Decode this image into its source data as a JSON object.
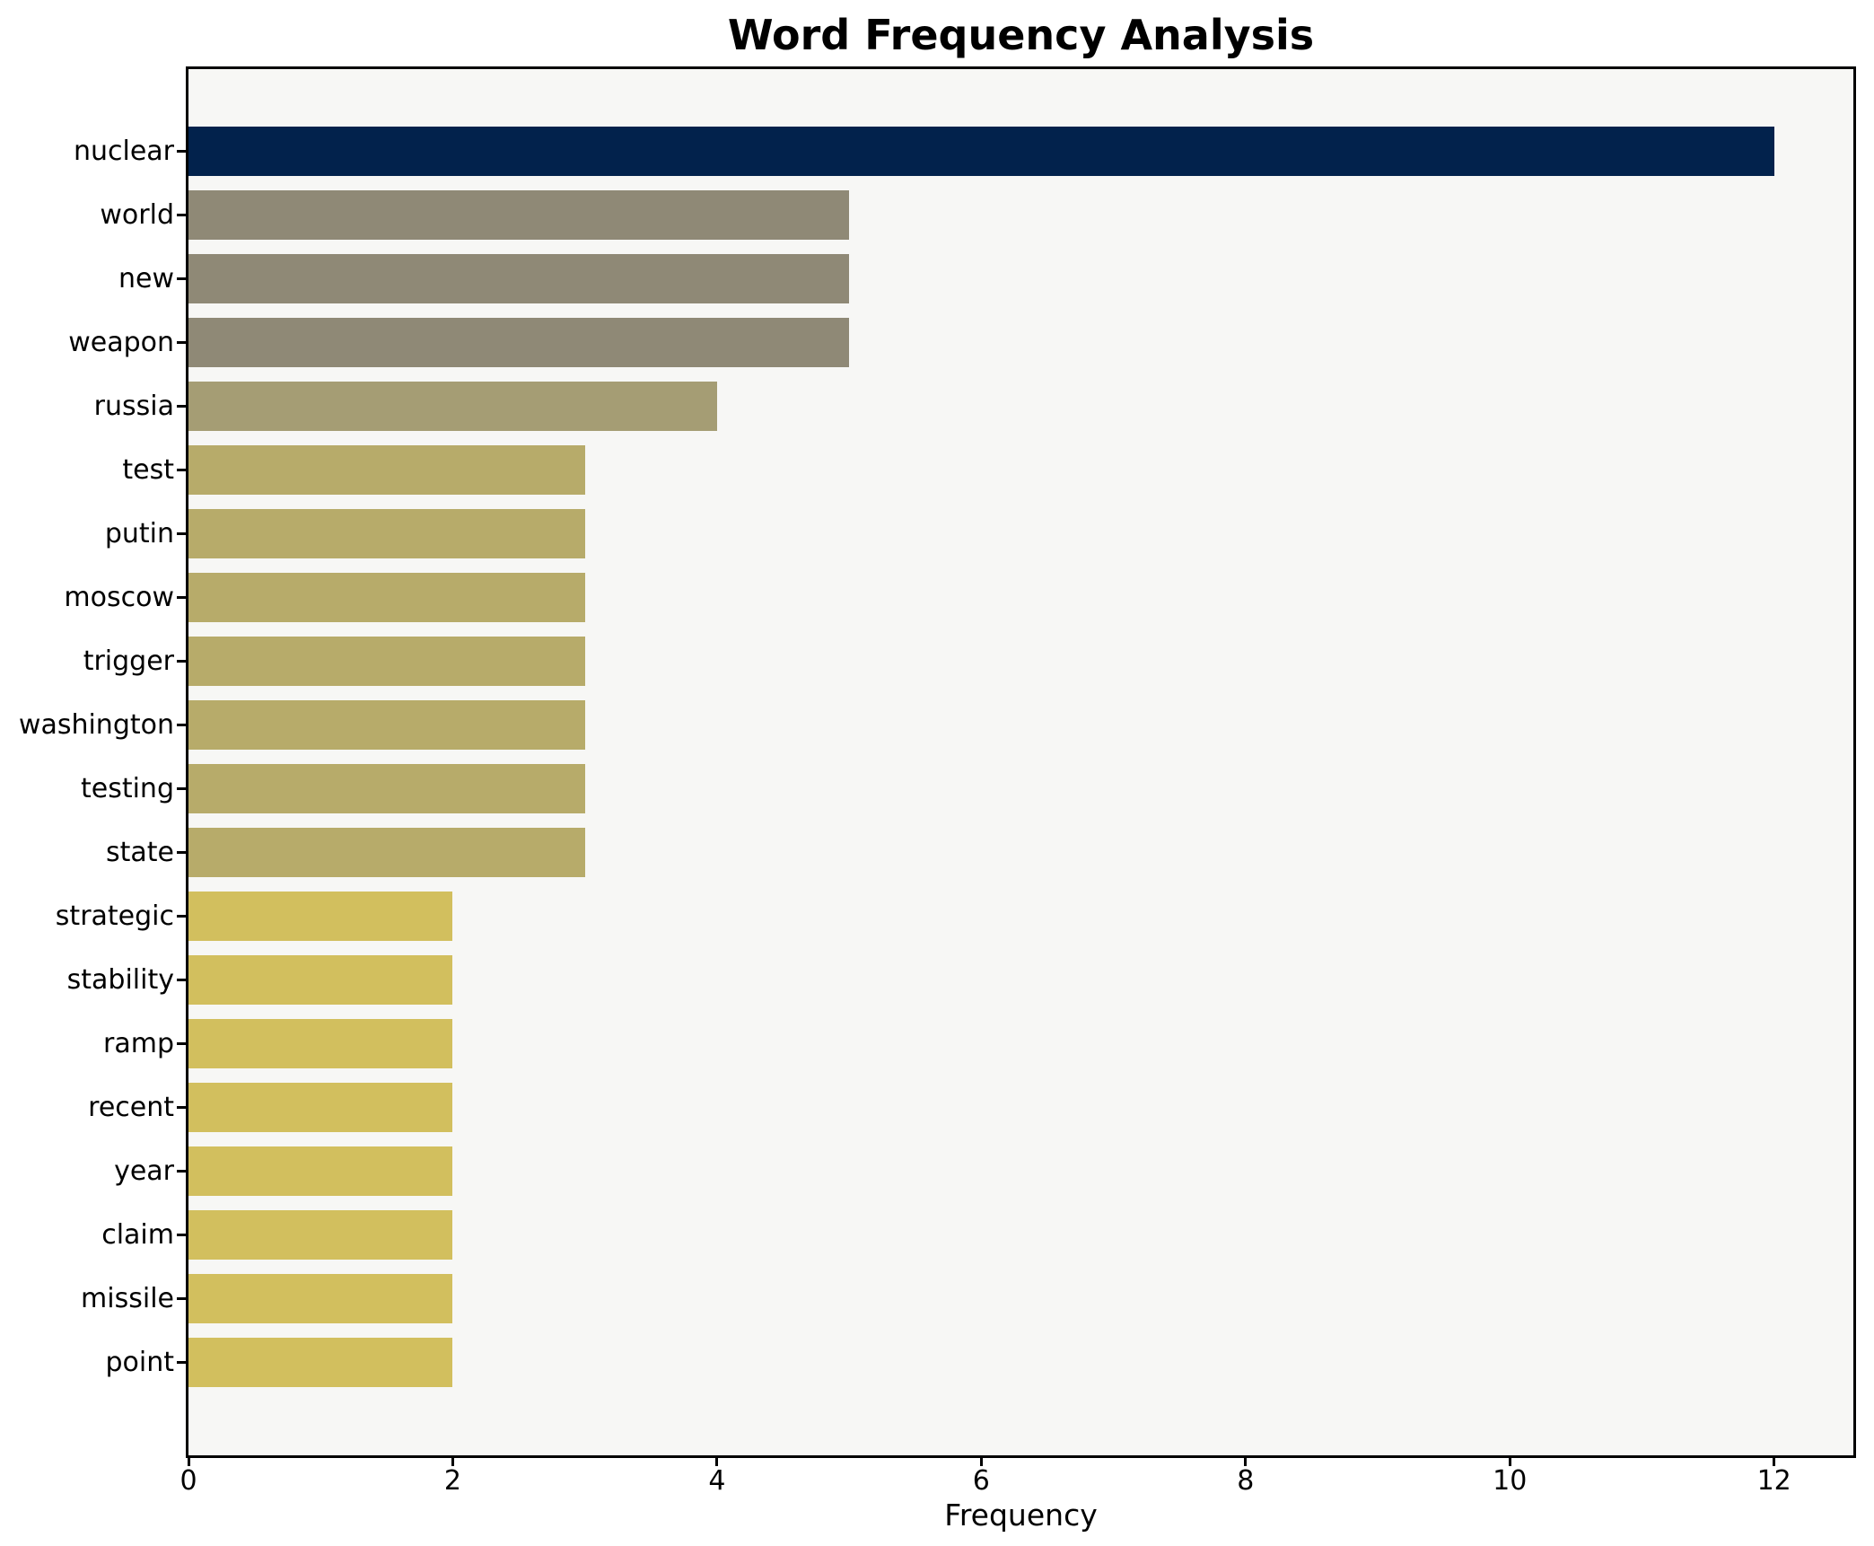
{
  "chart_data": {
    "type": "bar",
    "orientation": "horizontal",
    "title": "Word Frequency Analysis",
    "xlabel": "Frequency",
    "ylabel": "",
    "categories": [
      "nuclear",
      "world",
      "new",
      "weapon",
      "russia",
      "test",
      "putin",
      "moscow",
      "trigger",
      "washington",
      "testing",
      "state",
      "strategic",
      "stability",
      "ramp",
      "recent",
      "year",
      "claim",
      "missile",
      "point"
    ],
    "values": [
      12,
      5,
      5,
      5,
      4,
      3,
      3,
      3,
      3,
      3,
      3,
      3,
      2,
      2,
      2,
      2,
      2,
      2,
      2,
      2
    ],
    "bar_colors": [
      "#02224c",
      "#8f8976",
      "#8f8976",
      "#8f8976",
      "#a59d74",
      "#b7ab6a",
      "#b7ab6a",
      "#b7ab6a",
      "#b7ab6a",
      "#b7ab6a",
      "#b7ab6a",
      "#b7ab6a",
      "#d2bf5e",
      "#d2bf5e",
      "#d2bf5e",
      "#d2bf5e",
      "#d2bf5e",
      "#d2bf5e",
      "#d2bf5e",
      "#d2bf5e"
    ],
    "xlim": [
      0,
      12.6
    ],
    "xticks": [
      0,
      2,
      4,
      6,
      8,
      10,
      12
    ],
    "grid": false,
    "legend_position": "none",
    "colors": {
      "figure_background": "#ffffff",
      "plot_background": "#f7f7f5",
      "axis": "#000000",
      "text": "#000000"
    }
  }
}
